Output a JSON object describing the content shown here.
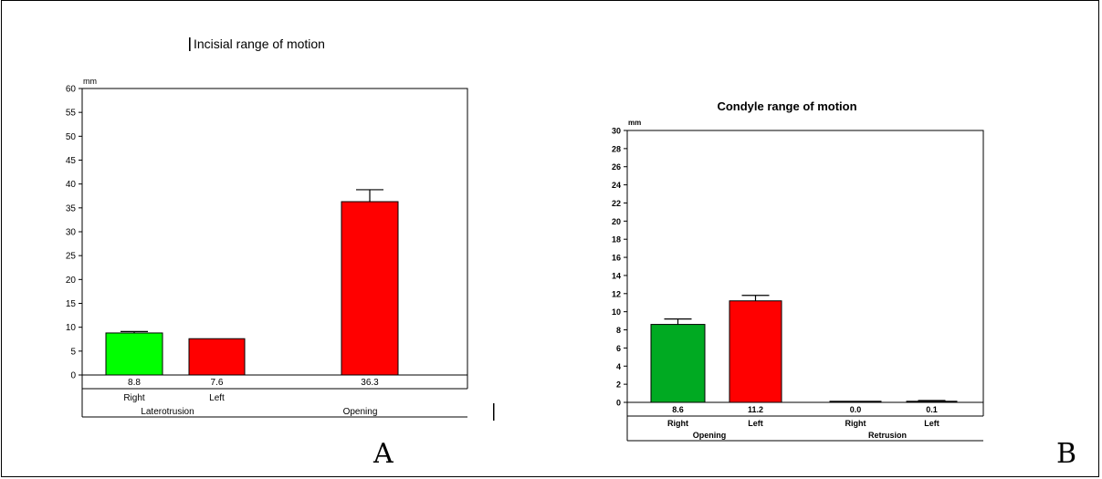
{
  "panel_letters": {
    "a": "A",
    "b": "B"
  },
  "chart_data": [
    {
      "type": "bar",
      "title": "Incisial range of motion",
      "ylabel": "mm",
      "ylim": [
        0,
        60
      ],
      "yticks": [
        0,
        5,
        10,
        15,
        20,
        25,
        30,
        35,
        40,
        45,
        50,
        55,
        60
      ],
      "grid": false,
      "categories": [
        "Right",
        "Left",
        ""
      ],
      "values": [
        8.8,
        7.6,
        36.3
      ],
      "error": [
        0.3,
        0,
        2.5
      ],
      "colors": [
        "#00ff00",
        "#ff0000",
        "#ff0000"
      ],
      "data_labels": [
        "8.8",
        "7.6",
        "36.3"
      ],
      "groups": [
        {
          "label": "Laterotrusion",
          "members": [
            0,
            1
          ]
        },
        {
          "label": "Opening",
          "members": [
            2
          ]
        }
      ]
    },
    {
      "type": "bar",
      "title": "Condyle range of motion",
      "ylabel": "mm",
      "ylim": [
        0,
        30
      ],
      "yticks": [
        0,
        2,
        4,
        6,
        8,
        10,
        12,
        14,
        16,
        18,
        20,
        22,
        24,
        26,
        28,
        30
      ],
      "grid": false,
      "categories": [
        "Right",
        "Left",
        "Right",
        "Left"
      ],
      "values": [
        8.6,
        11.2,
        0.0,
        0.1
      ],
      "error": [
        0.6,
        0.6,
        0,
        0.1
      ],
      "colors": [
        "#00aa22",
        "#ff0000",
        "#000000",
        "#000000"
      ],
      "data_labels": [
        "8.6",
        "11.2",
        "0.0",
        "0.1"
      ],
      "groups": [
        {
          "label": "Opening",
          "members": [
            0,
            1
          ]
        },
        {
          "label": "Retrusion",
          "members": [
            2,
            3
          ]
        }
      ]
    }
  ]
}
